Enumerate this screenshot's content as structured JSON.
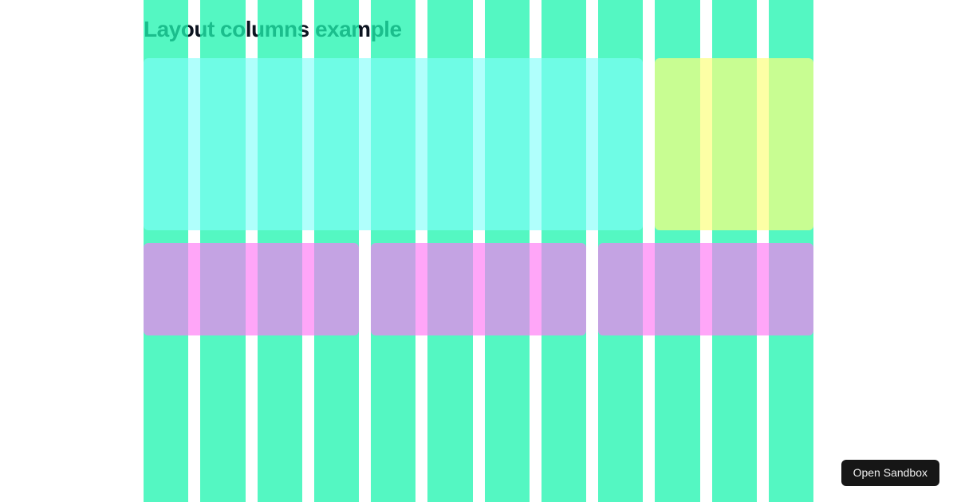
{
  "title": "Layout columns example",
  "colors": {
    "background": "#ffffff",
    "title_text": "#0d1420",
    "grid_column": "rgba(30, 244, 175, 0.76)",
    "block_cyan": "rgba(128, 255, 250, 0.62)",
    "block_yellow": "rgba(252, 255, 125, 0.69)",
    "block_pink": "rgba(255, 120, 244, 0.66)",
    "button_bg": "#161616",
    "button_text": "#f0f0f0"
  },
  "grid": {
    "columns": 12
  },
  "blocks": [
    {
      "name": "cyan-block",
      "row": 1,
      "start": 1,
      "span": 9,
      "color_key": "block_cyan"
    },
    {
      "name": "yellow-block",
      "row": 1,
      "start": 10,
      "span": 3,
      "color_key": "block_yellow"
    },
    {
      "name": "pink-block-1",
      "row": 2,
      "start": 1,
      "span": 4,
      "color_key": "block_pink"
    },
    {
      "name": "pink-block-2",
      "row": 2,
      "start": 5,
      "span": 4,
      "color_key": "block_pink"
    },
    {
      "name": "pink-block-3",
      "row": 2,
      "start": 9,
      "span": 4,
      "color_key": "block_pink"
    }
  ],
  "button": {
    "label": "Open Sandbox"
  }
}
